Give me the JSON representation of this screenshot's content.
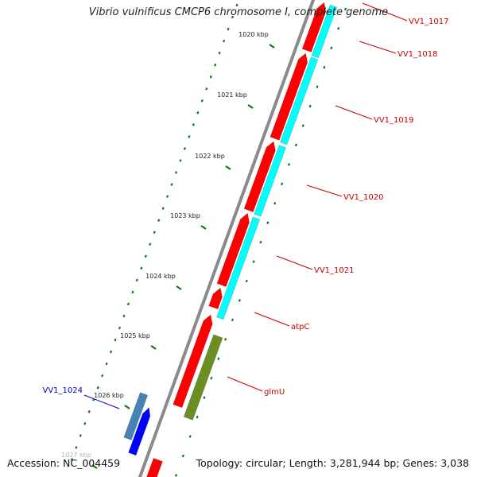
{
  "title": "Vibrio vulnificus CMCP6 chromosome I, complete genome",
  "accession": "Accession: NC_004459",
  "topology": "Topology: circular; Length: 3,281,944 bp; Genes: 3,038",
  "colors": {
    "backbone": "#8a8a8a",
    "forward_cds": "#ff0000",
    "reverse_cds": "#00ffff",
    "glmU": "#6b8e23",
    "vv1_1024_a": "#4682b4",
    "vv1_1024_b": "#0000ff",
    "tick": "#0a7a0a",
    "label_red": "#cc0000",
    "label_blue": "#0000cc"
  },
  "kbp_ticks": [
    {
      "kbp": 1020,
      "label": "1020 kbp"
    },
    {
      "kbp": 1021,
      "label": "1021 kbp"
    },
    {
      "kbp": 1022,
      "label": "1022 kbp"
    },
    {
      "kbp": 1023,
      "label": "1023 kbp"
    },
    {
      "kbp": 1024,
      "label": "1024 kbp"
    },
    {
      "kbp": 1025,
      "label": "1025 kbp"
    },
    {
      "kbp": 1026,
      "label": "1026 kbp"
    },
    {
      "kbp": 1027,
      "label": "1027 kbp"
    }
  ],
  "genes": [
    {
      "name": "VV1_1017",
      "label_color": "red"
    },
    {
      "name": "VV1_1018",
      "label_color": "red"
    },
    {
      "name": "VV1_1019",
      "label_color": "red"
    },
    {
      "name": "VV1_1020",
      "label_color": "red"
    },
    {
      "name": "VV1_1021",
      "label_color": "red"
    },
    {
      "name": "atpC",
      "label_color": "red"
    },
    {
      "name": "glmU",
      "label_color": "red"
    },
    {
      "name": "VV1_1024",
      "label_color": "blue"
    }
  ]
}
